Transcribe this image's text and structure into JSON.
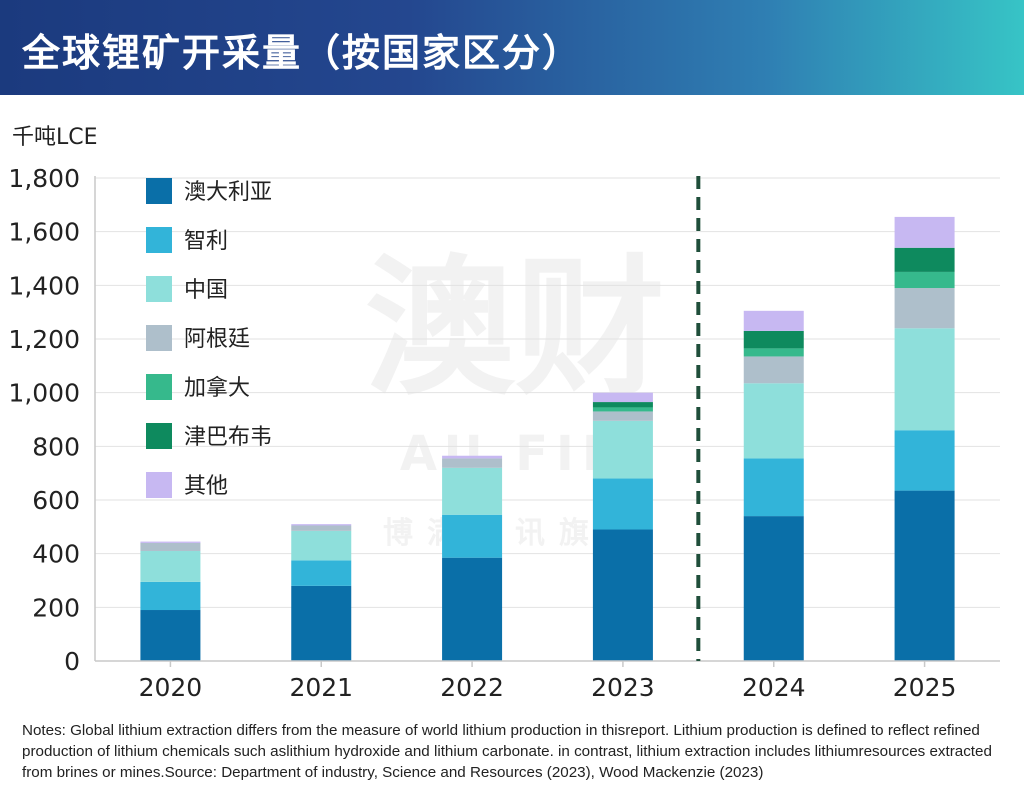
{
  "header": {
    "title": "全球锂矿开采量（按国家区分）"
  },
  "watermark": {
    "big": "澳财",
    "brand": "AU FIN",
    "slogan": "博满资讯旗下"
  },
  "notes": "Notes: Global lithium extraction differs from the measure of world lithium production in thisreport. Lithium production is defined to reflect refined production of lithium chemicals such aslithium hydroxide and lithium carbonate. in contrast, lithium extraction includes lithiumresources extracted from brines or mines.Source: Department of industry, Science and Resources (2023), Wood Mackenzie (2023)",
  "chart_data": {
    "type": "bar",
    "stacked": true,
    "title": "全球锂矿开采量（按国家区分）",
    "ylabel": "千吨LCE",
    "xlabel": "",
    "ylim": [
      0,
      1800
    ],
    "yticks": [
      0,
      200,
      400,
      600,
      800,
      1000,
      1200,
      1400,
      1600,
      1800
    ],
    "ytick_labels": [
      "0",
      "200",
      "400",
      "600",
      "800",
      "1,000",
      "1,200",
      "1,400",
      "1,600",
      "1,800"
    ],
    "grid": true,
    "legend_position": "top-left",
    "forecast_divider_between": [
      "2023",
      "2024"
    ],
    "categories": [
      "2020",
      "2021",
      "2022",
      "2023",
      "2024",
      "2025"
    ],
    "series": [
      {
        "name": "澳大利亚",
        "color": "#0a6fa8",
        "values": [
          190,
          280,
          385,
          490,
          540,
          635
        ]
      },
      {
        "name": "智利",
        "color": "#32b4d9",
        "values": [
          105,
          95,
          160,
          190,
          215,
          225
        ]
      },
      {
        "name": "中国",
        "color": "#8edfdb",
        "values": [
          115,
          110,
          175,
          215,
          280,
          380
        ]
      },
      {
        "name": "阿根廷",
        "color": "#aebfcb",
        "values": [
          30,
          20,
          35,
          35,
          100,
          150
        ]
      },
      {
        "name": "加拿大",
        "color": "#36b98c",
        "values": [
          0,
          0,
          0,
          15,
          30,
          60
        ]
      },
      {
        "name": "津巴布韦",
        "color": "#0e8a5e",
        "values": [
          0,
          0,
          0,
          20,
          65,
          90
        ]
      },
      {
        "name": "其他",
        "color": "#c7b8f2",
        "values": [
          5,
          5,
          10,
          35,
          75,
          115
        ]
      }
    ]
  }
}
